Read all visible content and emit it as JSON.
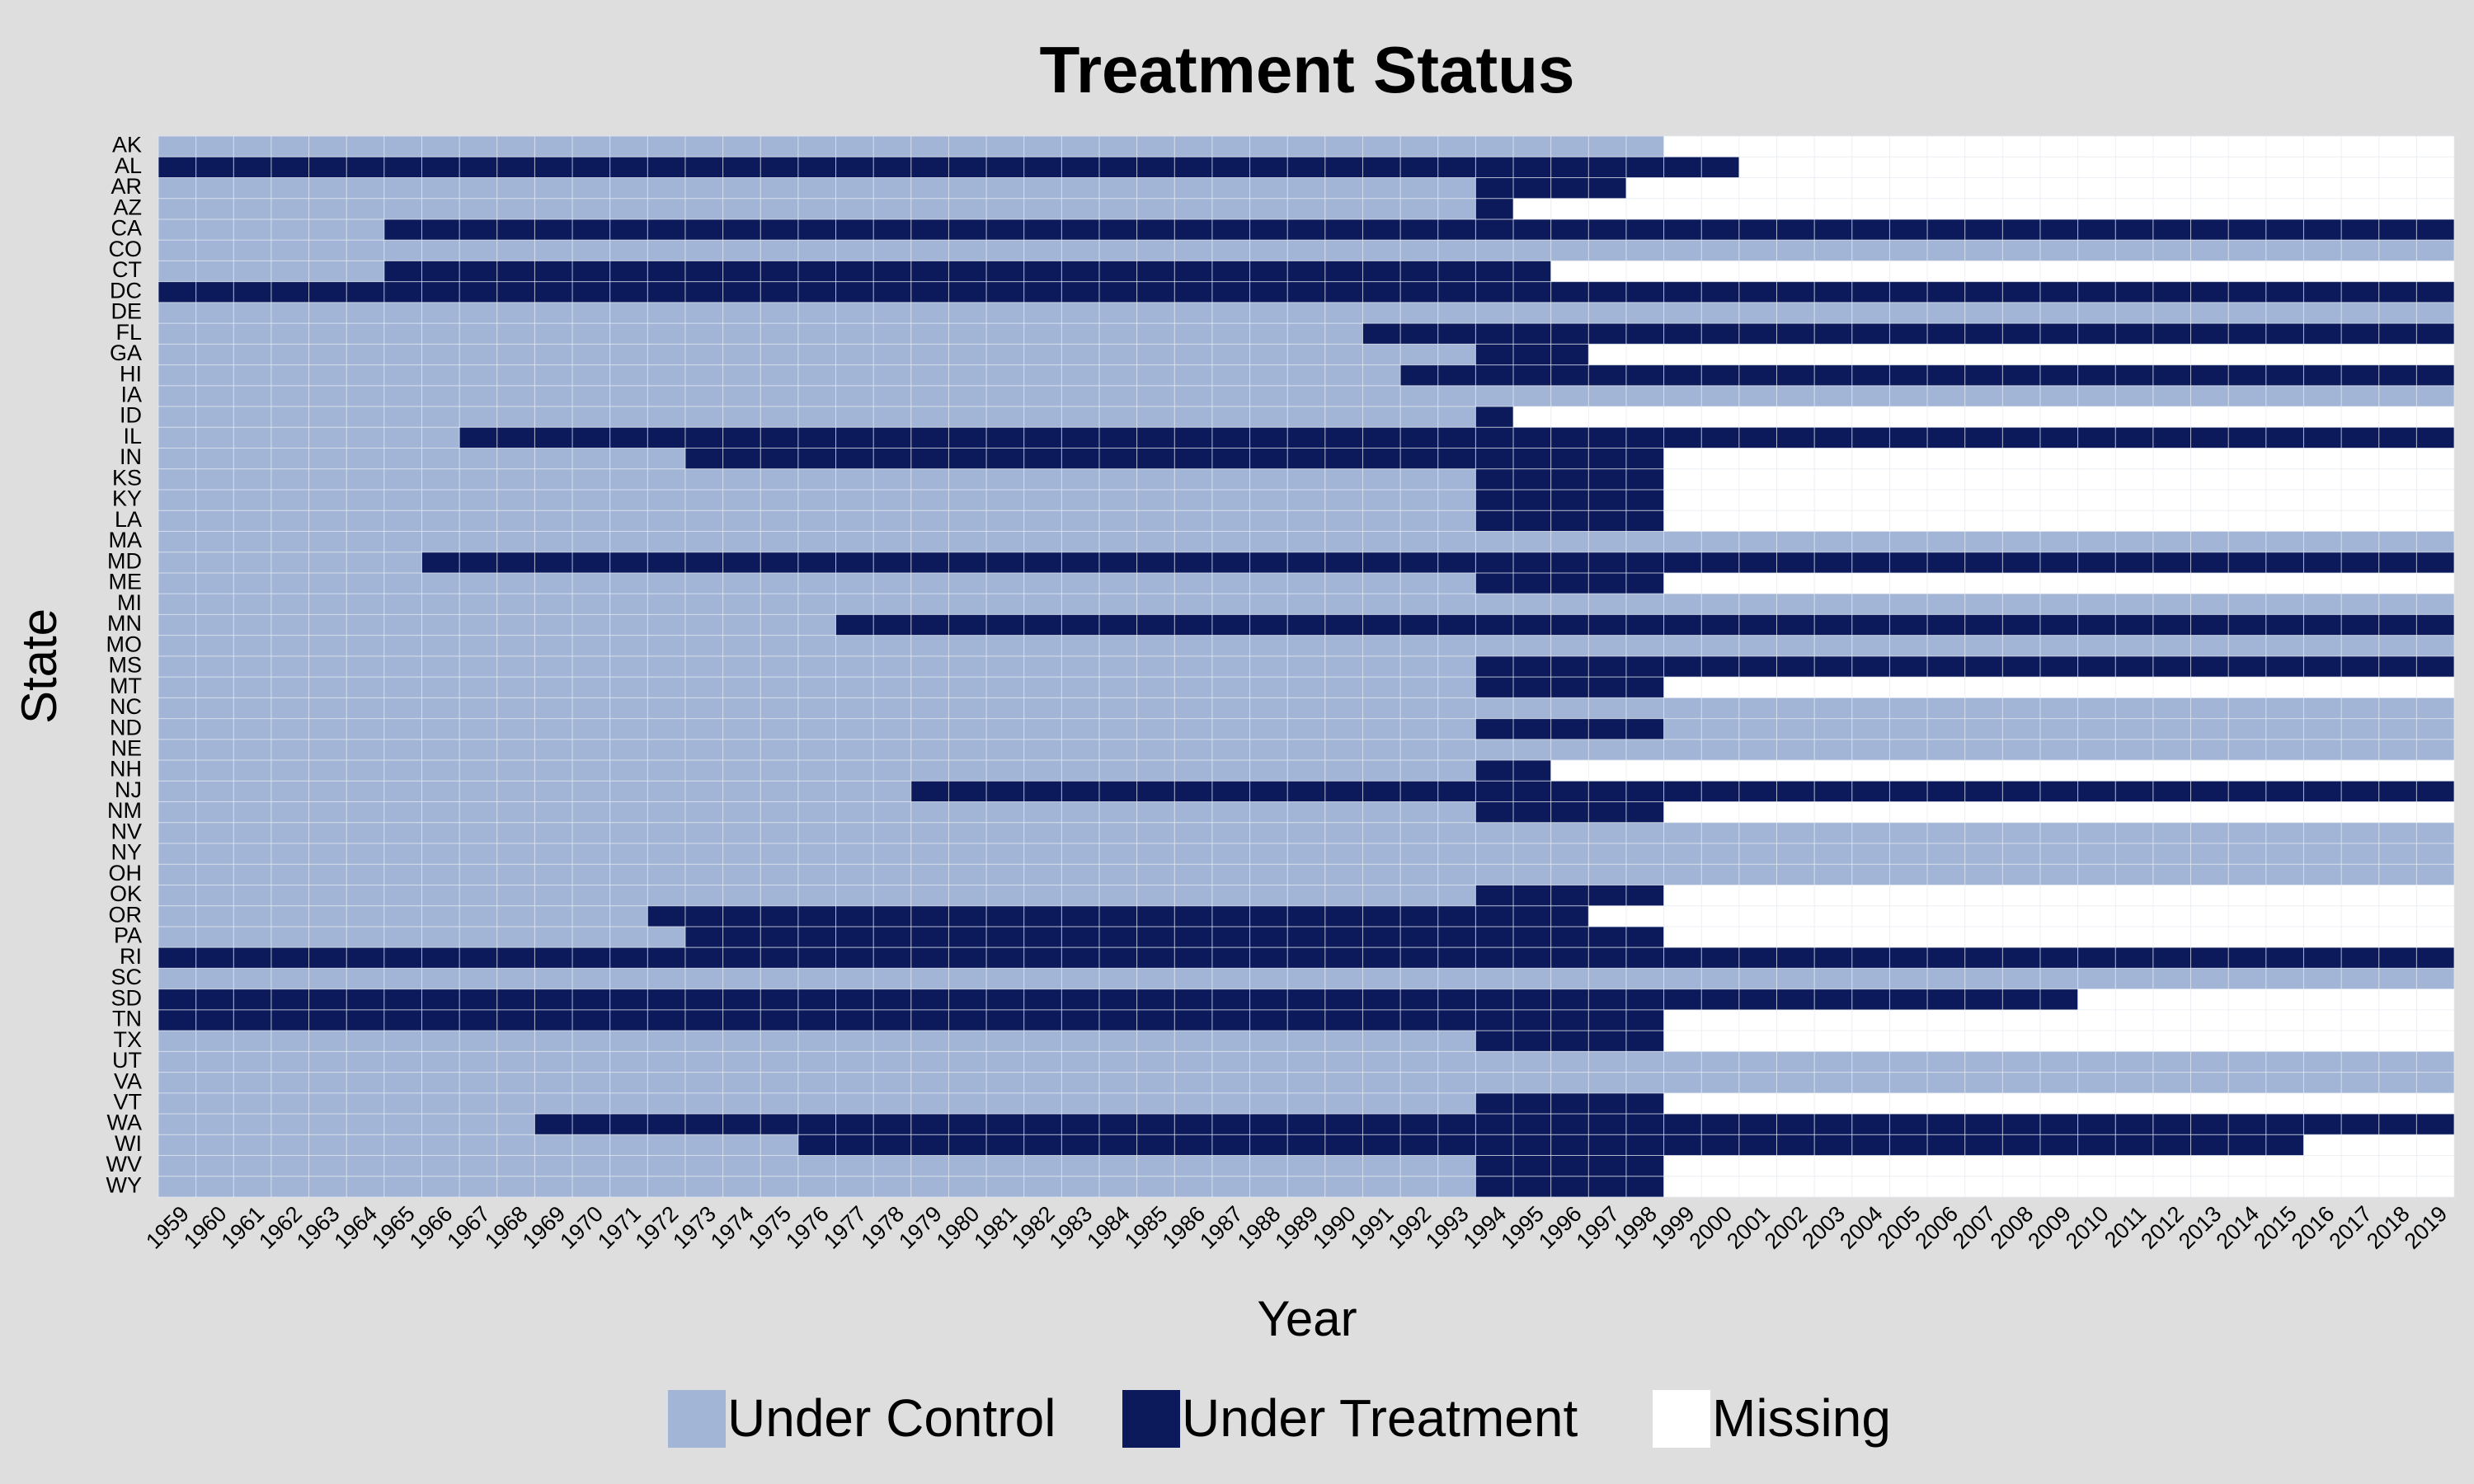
{
  "chart_data": {
    "type": "heatmap",
    "title": "Treatment Status",
    "xlabel": "Year",
    "ylabel": "State",
    "years": [
      1959,
      1960,
      1961,
      1962,
      1963,
      1964,
      1965,
      1966,
      1967,
      1968,
      1969,
      1970,
      1971,
      1972,
      1973,
      1974,
      1975,
      1976,
      1977,
      1978,
      1979,
      1980,
      1981,
      1982,
      1983,
      1984,
      1985,
      1986,
      1987,
      1988,
      1989,
      1990,
      1991,
      1992,
      1993,
      1994,
      1995,
      1996,
      1997,
      1998,
      1999,
      2000,
      2001,
      2002,
      2003,
      2004,
      2005,
      2006,
      2007,
      2008,
      2009,
      2010,
      2011,
      2012,
      2013,
      2014,
      2015,
      2016,
      2017,
      2018,
      2019
    ],
    "states": [
      "AK",
      "AL",
      "AR",
      "AZ",
      "CA",
      "CO",
      "CT",
      "DC",
      "DE",
      "FL",
      "GA",
      "HI",
      "IA",
      "ID",
      "IL",
      "IN",
      "KS",
      "KY",
      "LA",
      "MA",
      "MD",
      "ME",
      "MI",
      "MN",
      "MO",
      "MS",
      "MT",
      "NC",
      "ND",
      "NE",
      "NH",
      "NJ",
      "NM",
      "NV",
      "NY",
      "OH",
      "OK",
      "OR",
      "PA",
      "RI",
      "SC",
      "SD",
      "TN",
      "TX",
      "UT",
      "VA",
      "VT",
      "WA",
      "WI",
      "WV",
      "WY"
    ],
    "categories": [
      "Under Control",
      "Under Treatment",
      "Missing"
    ],
    "colors": {
      "Under Control": "#a2b5d6",
      "Under Treatment": "#0c1a5c",
      "Missing": "#ffffff",
      "background": "#dedede",
      "grid": "#e6eaf0"
    },
    "legend_position": "bottom",
    "status_note": "Each state lists contiguous year ranges: [status, first_year, last_year]; years not covered are Missing.",
    "status": {
      "AK": [
        [
          "Under Control",
          1959,
          1998
        ]
      ],
      "AL": [
        [
          "Under Treatment",
          1959,
          2000
        ]
      ],
      "AR": [
        [
          "Under Control",
          1959,
          1993
        ],
        [
          "Under Treatment",
          1994,
          1997
        ]
      ],
      "AZ": [
        [
          "Under Control",
          1959,
          1993
        ],
        [
          "Under Treatment",
          1994,
          1994
        ]
      ],
      "CA": [
        [
          "Under Control",
          1959,
          1964
        ],
        [
          "Under Treatment",
          1965,
          2019
        ]
      ],
      "CO": [
        [
          "Under Control",
          1959,
          2019
        ]
      ],
      "CT": [
        [
          "Under Control",
          1959,
          1964
        ],
        [
          "Under Treatment",
          1965,
          1995
        ]
      ],
      "DC": [
        [
          "Under Treatment",
          1959,
          2019
        ]
      ],
      "DE": [
        [
          "Under Control",
          1959,
          2019
        ]
      ],
      "FL": [
        [
          "Under Control",
          1959,
          1990
        ],
        [
          "Under Treatment",
          1991,
          2019
        ]
      ],
      "GA": [
        [
          "Under Control",
          1959,
          1993
        ],
        [
          "Under Treatment",
          1994,
          1996
        ]
      ],
      "HI": [
        [
          "Under Control",
          1959,
          1991
        ],
        [
          "Under Treatment",
          1992,
          2019
        ]
      ],
      "IA": [
        [
          "Under Control",
          1959,
          2019
        ]
      ],
      "ID": [
        [
          "Under Control",
          1959,
          1993
        ],
        [
          "Under Treatment",
          1994,
          1994
        ]
      ],
      "IL": [
        [
          "Under Control",
          1959,
          1966
        ],
        [
          "Under Treatment",
          1967,
          2019
        ]
      ],
      "IN": [
        [
          "Under Control",
          1959,
          1972
        ],
        [
          "Under Treatment",
          1973,
          1998
        ]
      ],
      "KS": [
        [
          "Under Control",
          1959,
          1993
        ],
        [
          "Under Treatment",
          1994,
          1998
        ]
      ],
      "KY": [
        [
          "Under Control",
          1959,
          1993
        ],
        [
          "Under Treatment",
          1994,
          1998
        ]
      ],
      "LA": [
        [
          "Under Control",
          1959,
          1993
        ],
        [
          "Under Treatment",
          1994,
          1998
        ]
      ],
      "MA": [
        [
          "Under Control",
          1959,
          2019
        ]
      ],
      "MD": [
        [
          "Under Control",
          1959,
          1965
        ],
        [
          "Under Treatment",
          1966,
          2019
        ]
      ],
      "ME": [
        [
          "Under Control",
          1959,
          1993
        ],
        [
          "Under Treatment",
          1994,
          1998
        ]
      ],
      "MI": [
        [
          "Under Control",
          1959,
          2019
        ]
      ],
      "MN": [
        [
          "Under Control",
          1959,
          1976
        ],
        [
          "Under Treatment",
          1977,
          2019
        ]
      ],
      "MO": [
        [
          "Under Control",
          1959,
          2019
        ]
      ],
      "MS": [
        [
          "Under Control",
          1959,
          1993
        ],
        [
          "Under Treatment",
          1994,
          2019
        ]
      ],
      "MT": [
        [
          "Under Control",
          1959,
          1993
        ],
        [
          "Under Treatment",
          1994,
          1998
        ]
      ],
      "NC": [
        [
          "Under Control",
          1959,
          2019
        ]
      ],
      "ND": [
        [
          "Under Control",
          1959,
          1993
        ],
        [
          "Under Treatment",
          1994,
          1998
        ],
        [
          "Under Control",
          1999,
          2019
        ]
      ],
      "NE": [
        [
          "Under Control",
          1959,
          2019
        ]
      ],
      "NH": [
        [
          "Under Control",
          1959,
          1993
        ],
        [
          "Under Treatment",
          1994,
          1995
        ]
      ],
      "NJ": [
        [
          "Under Control",
          1959,
          1978
        ],
        [
          "Under Treatment",
          1979,
          2019
        ]
      ],
      "NM": [
        [
          "Under Control",
          1959,
          1993
        ],
        [
          "Under Treatment",
          1994,
          1998
        ]
      ],
      "NV": [
        [
          "Under Control",
          1959,
          2019
        ]
      ],
      "NY": [
        [
          "Under Control",
          1959,
          2019
        ]
      ],
      "OH": [
        [
          "Under Control",
          1959,
          2019
        ]
      ],
      "OK": [
        [
          "Under Control",
          1959,
          1993
        ],
        [
          "Under Treatment",
          1994,
          1998
        ]
      ],
      "OR": [
        [
          "Under Control",
          1959,
          1971
        ],
        [
          "Under Treatment",
          1972,
          1996
        ]
      ],
      "PA": [
        [
          "Under Control",
          1959,
          1972
        ],
        [
          "Under Treatment",
          1973,
          1998
        ]
      ],
      "RI": [
        [
          "Under Treatment",
          1959,
          2019
        ]
      ],
      "SC": [
        [
          "Under Control",
          1959,
          2019
        ]
      ],
      "SD": [
        [
          "Under Treatment",
          1959,
          2009
        ]
      ],
      "TN": [
        [
          "Under Treatment",
          1959,
          1998
        ]
      ],
      "TX": [
        [
          "Under Control",
          1959,
          1993
        ],
        [
          "Under Treatment",
          1994,
          1998
        ]
      ],
      "UT": [
        [
          "Under Control",
          1959,
          2019
        ]
      ],
      "VA": [
        [
          "Under Control",
          1959,
          2019
        ]
      ],
      "VT": [
        [
          "Under Control",
          1959,
          1993
        ],
        [
          "Under Treatment",
          1994,
          1998
        ]
      ],
      "WA": [
        [
          "Under Control",
          1959,
          1968
        ],
        [
          "Under Treatment",
          1969,
          2019
        ]
      ],
      "WI": [
        [
          "Under Control",
          1959,
          1975
        ],
        [
          "Under Treatment",
          1976,
          2015
        ]
      ],
      "WV": [
        [
          "Under Control",
          1959,
          1993
        ],
        [
          "Under Treatment",
          1994,
          1998
        ]
      ],
      "WY": [
        [
          "Under Control",
          1959,
          1993
        ],
        [
          "Under Treatment",
          1994,
          1998
        ]
      ]
    }
  }
}
